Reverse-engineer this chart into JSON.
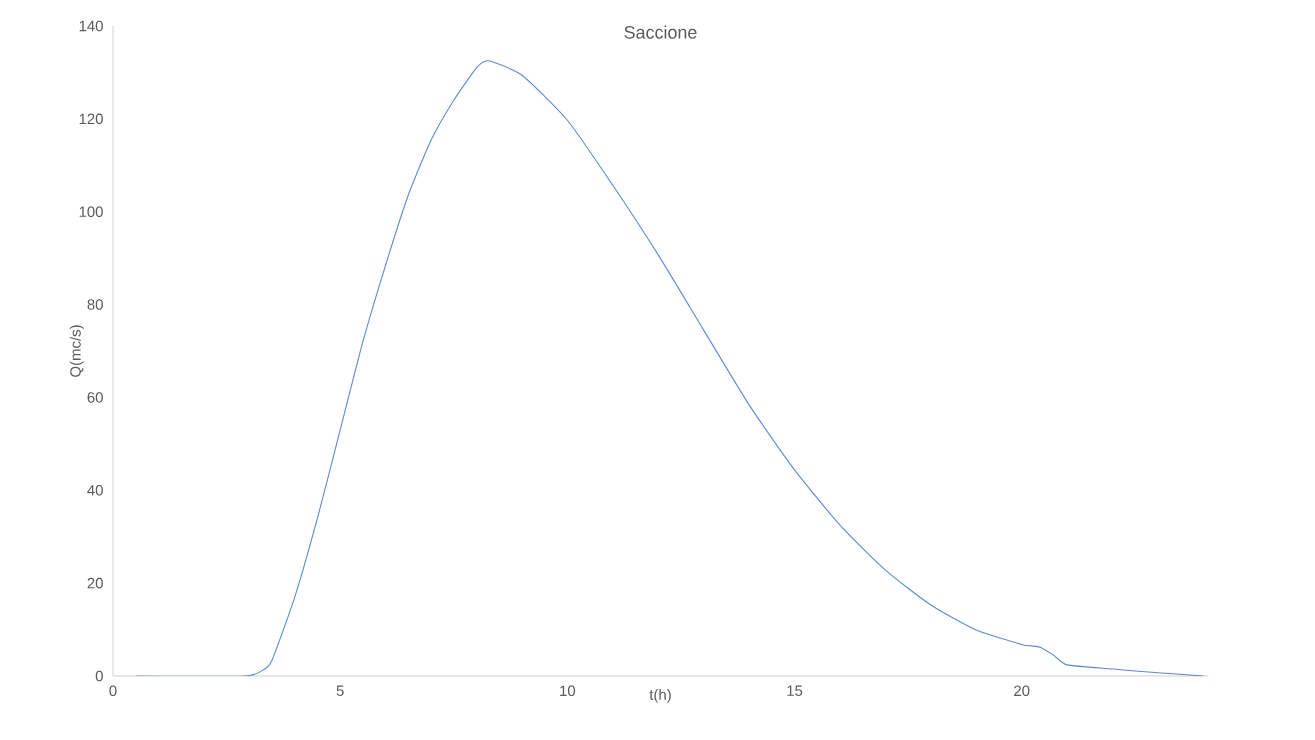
{
  "chart_data": {
    "type": "line",
    "title": "Saccione",
    "xlabel": "t(h)",
    "ylabel": "Q(mc/s)",
    "x": [
      0.5,
      2.9,
      3.3,
      3.5,
      4,
      4.5,
      5,
      5.5,
      6,
      6.5,
      7,
      7.5,
      8,
      8.26,
      9,
      10,
      11,
      12,
      13,
      14,
      15,
      16,
      17,
      18,
      19,
      20,
      20.4,
      20.7,
      21,
      22,
      23,
      24
    ],
    "series": [
      {
        "color": "#5b8bd0",
        "values": [
          0,
          0,
          1.3,
          3.4,
          17,
          34,
          53,
          72,
          88.5,
          103.6,
          115.4,
          124,
          131,
          132.5,
          129.4,
          119.7,
          105.7,
          90.7,
          74.5,
          58.4,
          44.4,
          32.5,
          22.8,
          15.3,
          9.9,
          6.8,
          6.2,
          4.5,
          2.4,
          1.5,
          0.7,
          0
        ]
      }
    ],
    "xlim": [
      0,
      24.1
    ],
    "ylim": [
      0,
      140
    ],
    "xticks": [
      0,
      5,
      10,
      15,
      20
    ],
    "yticks": [
      0,
      20,
      40,
      60,
      80,
      100,
      120,
      140
    ],
    "marker": "none",
    "line_style": "solid"
  }
}
